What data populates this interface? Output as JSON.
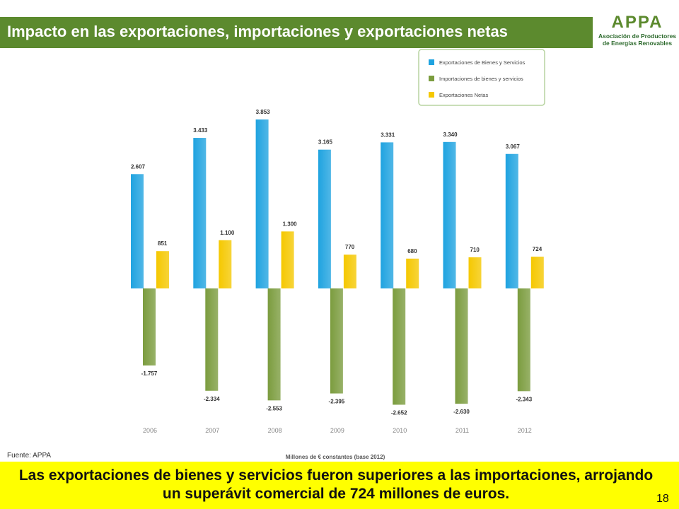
{
  "slide": {
    "title": "Impacto en las exportaciones, importaciones y exportaciones netas",
    "logo_name": "APPA",
    "logo_line1": "Asociación de Productores",
    "logo_line2": "de Energías Renovables",
    "source": "Fuente: APPA",
    "conclusion": "Las exportaciones de bienes y servicios fueron superiores a las importaciones, arrojando un superávit comercial de 724 millones de euros.",
    "slide_number": "18"
  },
  "colors": {
    "title_bar": "#5c8a2e",
    "exports": "#1fa3e0",
    "imports": "#7b9c3e",
    "net": "#f5c800",
    "footer": "#ffff00"
  },
  "chart_data": {
    "type": "bar",
    "title": "",
    "xlabel": "Millones de € constantes (base 2012)",
    "ylabel": "",
    "categories": [
      "2006",
      "2007",
      "2008",
      "2009",
      "2010",
      "2011",
      "2012"
    ],
    "series": [
      {
        "name": "Exportaciones de Bienes y Servicios",
        "values": [
          2607,
          3433,
          3853,
          3165,
          3331,
          3340,
          3067
        ],
        "labels": [
          "2.607",
          "3.433",
          "3.853",
          "3.165",
          "3.331",
          "3.340",
          "3.067"
        ]
      },
      {
        "name": "Importaciones de bienes y servicios",
        "values": [
          -1757,
          -2334,
          -2553,
          -2395,
          -2652,
          -2630,
          -2343
        ],
        "labels": [
          "-1.757",
          "-2.334",
          "-2.553",
          "-2.395",
          "-2.652",
          "-2.630",
          "-2.343"
        ]
      },
      {
        "name": "Exportaciones Netas",
        "values": [
          851,
          1100,
          1300,
          770,
          680,
          710,
          724
        ],
        "labels": [
          "851",
          "1.100",
          "1.300",
          "770",
          "680",
          "710",
          "724"
        ]
      }
    ],
    "ylim": [
      -2800,
      4000
    ],
    "grid": false,
    "legend": "top-right"
  }
}
